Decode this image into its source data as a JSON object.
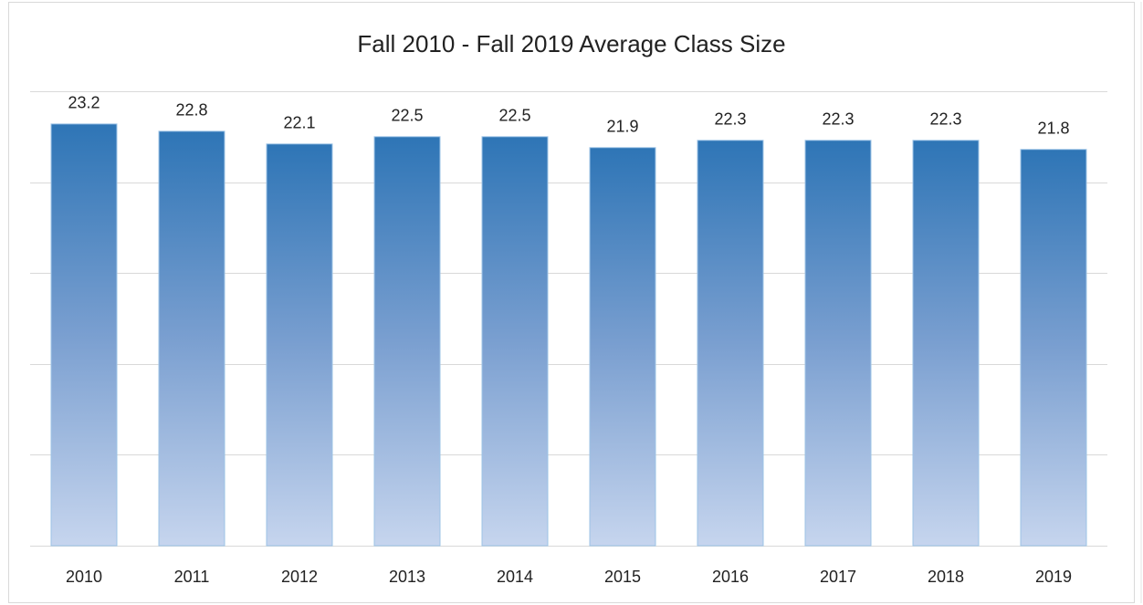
{
  "chart_data": {
    "type": "bar",
    "title": "Fall 2010 - Fall 2019  Average Class Size",
    "categories": [
      "2010",
      "2011",
      "2012",
      "2013",
      "2014",
      "2015",
      "2016",
      "2017",
      "2018",
      "2019"
    ],
    "values": [
      23.2,
      22.8,
      22.1,
      22.5,
      22.5,
      21.9,
      22.3,
      22.3,
      22.3,
      21.8
    ],
    "color": "#2e75b6",
    "ylim": [
      0,
      25
    ],
    "yticks": [
      0,
      5,
      10,
      15,
      20,
      25
    ],
    "grid": true
  }
}
